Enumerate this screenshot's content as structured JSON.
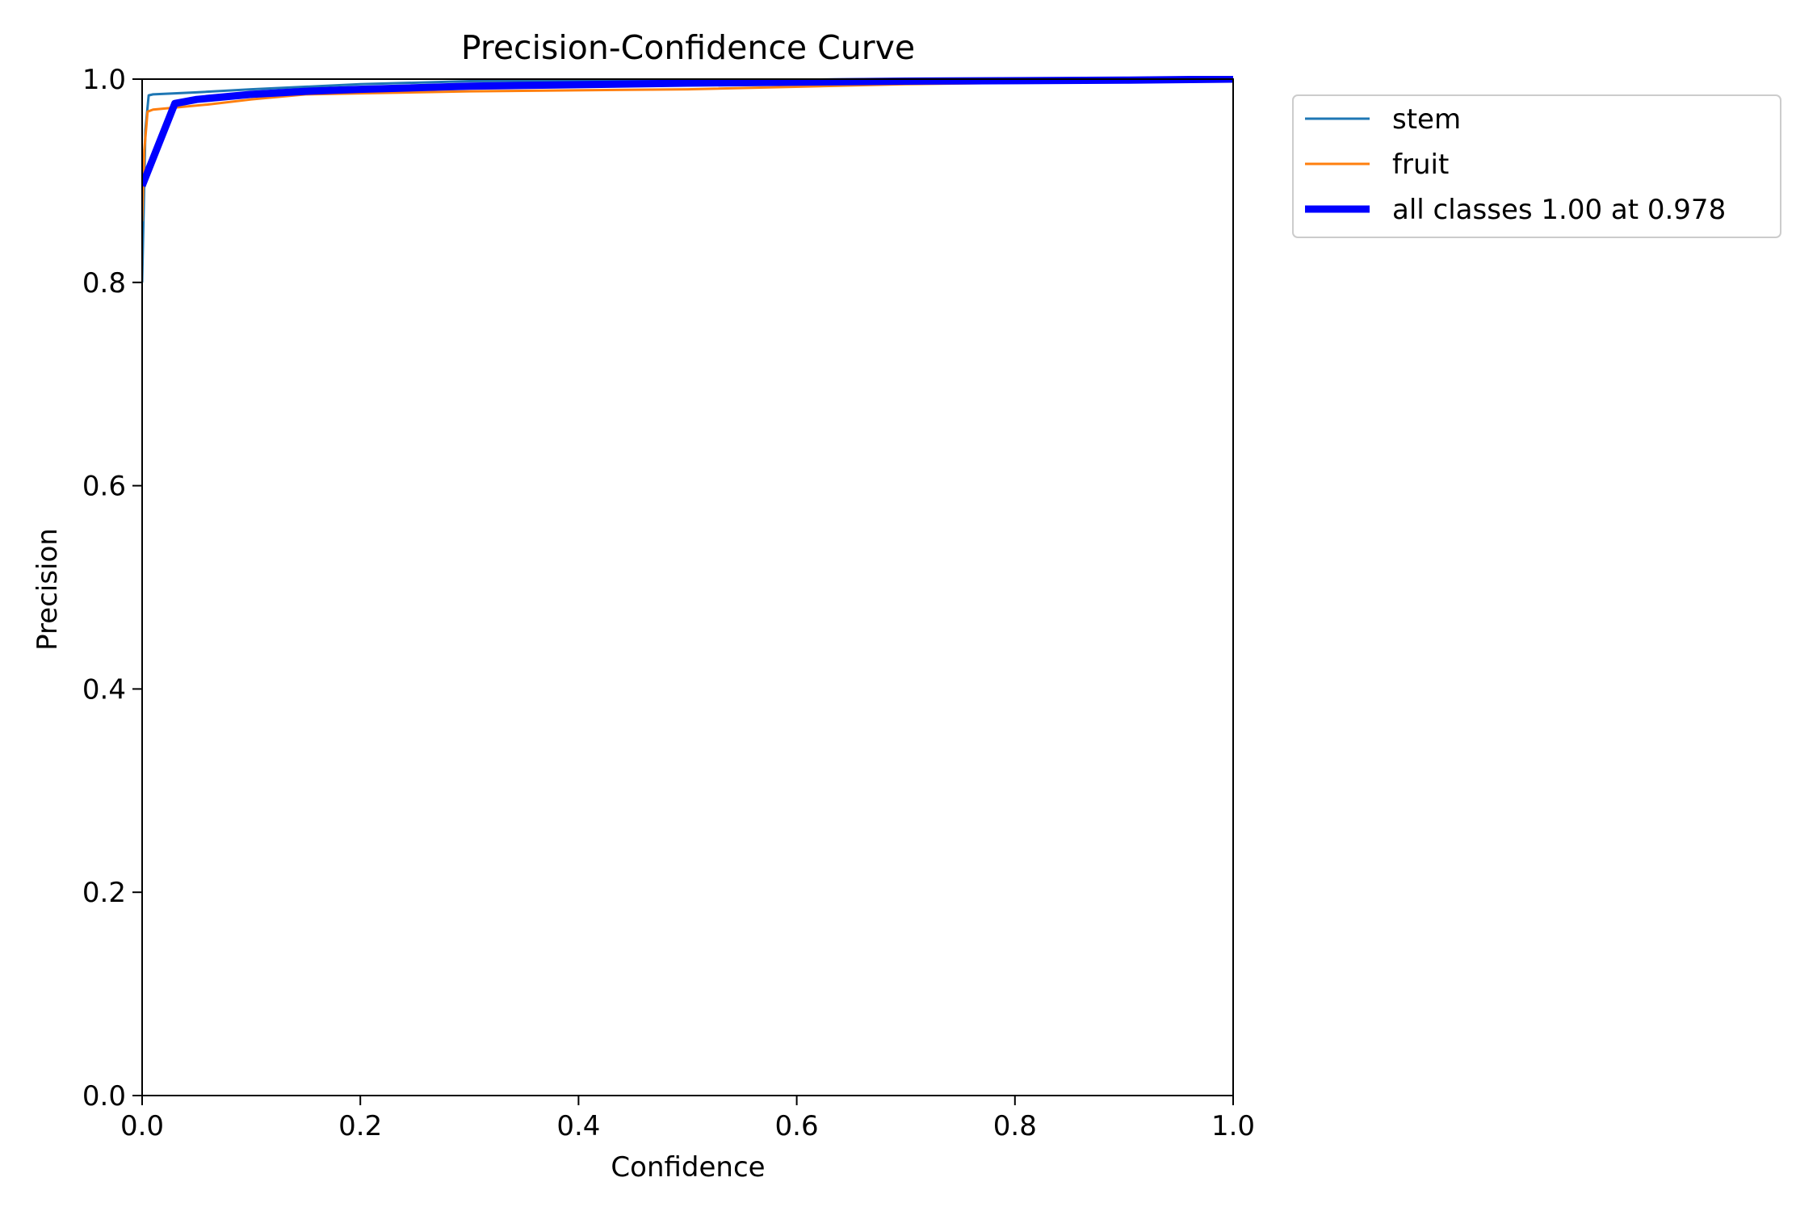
{
  "chart_data": {
    "type": "line",
    "title": "Precision-Confidence Curve",
    "xlabel": "Confidence",
    "ylabel": "Precision",
    "xlim": [
      0.0,
      1.0
    ],
    "ylim": [
      0.0,
      1.0
    ],
    "x_ticks": [
      "0.0",
      "0.2",
      "0.4",
      "0.6",
      "0.8",
      "1.0"
    ],
    "y_ticks": [
      "0.0",
      "0.2",
      "0.4",
      "0.6",
      "0.8",
      "1.0"
    ],
    "x_tick_values": [
      0.0,
      0.2,
      0.4,
      0.6,
      0.8,
      1.0
    ],
    "y_tick_values": [
      0.0,
      0.2,
      0.4,
      0.6,
      0.8,
      1.0
    ],
    "grid": false,
    "legend_position": "outside-top-right",
    "series": [
      {
        "name": "stem",
        "color": "#1f77b4",
        "x": [
          0.0,
          0.003,
          0.006,
          0.01,
          0.05,
          0.1,
          0.2,
          0.3,
          0.5,
          0.7,
          0.9,
          1.0
        ],
        "y": [
          0.8,
          0.95,
          0.984,
          0.985,
          0.987,
          0.99,
          0.995,
          0.998,
          0.999,
          1.0,
          1.0,
          1.0
        ]
      },
      {
        "name": "fruit",
        "color": "#ff7f0e",
        "x": [
          0.0,
          0.002,
          0.005,
          0.01,
          0.03,
          0.06,
          0.1,
          0.15,
          0.2,
          0.3,
          0.5,
          0.7,
          0.9,
          1.0
        ],
        "y": [
          0.86,
          0.93,
          0.968,
          0.97,
          0.972,
          0.975,
          0.98,
          0.985,
          0.986,
          0.988,
          0.99,
          0.995,
          0.998,
          1.0
        ]
      },
      {
        "name": "all classes 1.00 at 0.978",
        "color": "#0000ff",
        "x": [
          0.0,
          0.03,
          0.05,
          0.1,
          0.15,
          0.2,
          0.3,
          0.5,
          0.7,
          0.9,
          1.0
        ],
        "y": [
          0.895,
          0.976,
          0.98,
          0.985,
          0.988,
          0.99,
          0.993,
          0.996,
          0.998,
          0.999,
          1.0
        ]
      }
    ]
  }
}
